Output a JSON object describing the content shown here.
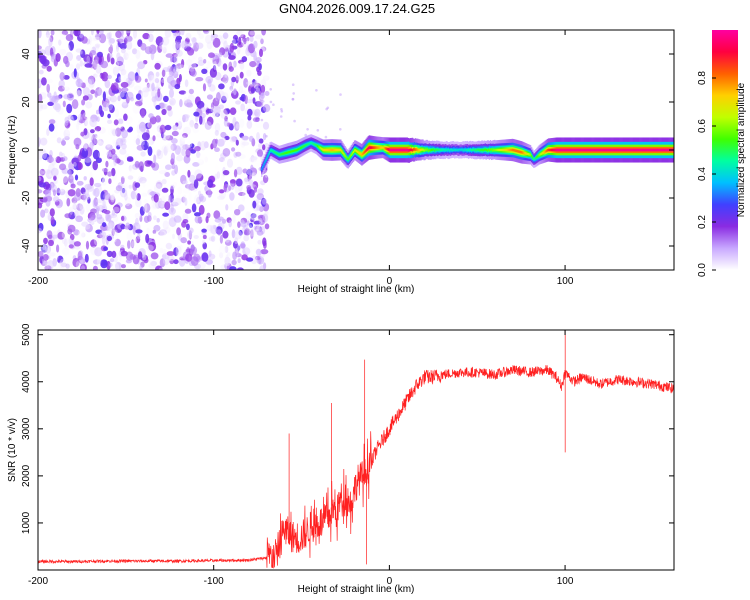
{
  "title": "GN04.2026.009.17.24.G25",
  "chart_data": [
    {
      "type": "heatmap",
      "xlabel": "Height of straight line (km)",
      "ylabel": "Frequency (Hz)",
      "xlim": [
        -200,
        162
      ],
      "ylim": [
        -50,
        50
      ],
      "x_ticks": [
        -200,
        -100,
        0,
        100
      ],
      "y_ticks": [
        -40,
        -20,
        0,
        20,
        40
      ],
      "noise_region_x": [
        -200,
        -73
      ],
      "ridge": {
        "x": [
          -73,
          -68,
          -63,
          -58,
          -53,
          -48,
          -45,
          -42,
          -38,
          -33,
          -28,
          -24,
          -20,
          -16,
          -12,
          -8,
          -4,
          0,
          10,
          20,
          30,
          40,
          50,
          60,
          70,
          75,
          80,
          82,
          85,
          90,
          95,
          100,
          110,
          120,
          130,
          140,
          150,
          162
        ],
        "freq": [
          -8,
          0,
          -2,
          -1,
          0,
          2,
          3,
          2,
          0,
          0,
          0,
          -4,
          0,
          -2,
          1,
          1,
          1,
          0,
          0,
          0,
          0,
          0,
          0,
          0,
          0,
          -1,
          -2,
          -4,
          -2,
          0,
          0,
          0,
          0,
          0,
          0,
          0,
          0,
          0
        ],
        "amplitude": [
          0.35,
          0.45,
          0.5,
          0.55,
          0.55,
          0.5,
          0.45,
          0.5,
          0.7,
          0.75,
          0.7,
          0.55,
          0.65,
          0.75,
          0.95,
          0.8,
          0.7,
          0.98,
          0.98,
          0.6,
          0.45,
          0.4,
          0.5,
          0.6,
          0.8,
          0.8,
          0.6,
          0.45,
          0.6,
          0.85,
          0.98,
          0.98,
          0.98,
          0.98,
          0.98,
          0.98,
          0.98,
          0.98
        ]
      },
      "colorbar": {
        "label": "Normalized spectral amplitude",
        "range": [
          0,
          1
        ],
        "ticks": [
          0.0,
          0.2,
          0.4,
          0.6,
          0.8
        ],
        "tick_labels": [
          "0.0",
          "0.2",
          "0.4",
          "0.6",
          "0.8"
        ],
        "colors": [
          "#ffffff",
          "#c8a8ff",
          "#8a2be2",
          "#4040ff",
          "#00c0ff",
          "#00ffa0",
          "#40ff00",
          "#c0ff00",
          "#ffd000",
          "#ff6000",
          "#ff0040",
          "#ff00a0"
        ]
      }
    },
    {
      "type": "line",
      "xlabel": "Height of straight line (km)",
      "ylabel": "SNR (10 * v/v)",
      "xlim": [
        -200,
        162
      ],
      "ylim": [
        0,
        5100
      ],
      "x_ticks": [
        -200,
        -100,
        0,
        100
      ],
      "y_ticks": [
        1000,
        2000,
        3000,
        4000,
        5000
      ],
      "color": "#ff0000",
      "x": [
        -200,
        -180,
        -160,
        -140,
        -120,
        -100,
        -80,
        -70,
        -65,
        -62,
        -60,
        -58,
        -55,
        -50,
        -45,
        -40,
        -35,
        -32,
        -30,
        -28,
        -25,
        -22,
        -20,
        -18,
        -15,
        -13,
        -10,
        -8,
        -5,
        0,
        5,
        10,
        15,
        20,
        25,
        30,
        40,
        50,
        60,
        70,
        80,
        90,
        95,
        98,
        100,
        105,
        110,
        120,
        130,
        140,
        150,
        162
      ],
      "y": [
        180,
        180,
        190,
        190,
        190,
        200,
        210,
        260,
        300,
        600,
        900,
        800,
        700,
        700,
        900,
        1000,
        1100,
        1300,
        1200,
        1500,
        1600,
        1400,
        1700,
        1900,
        2000,
        2100,
        2300,
        2500,
        2700,
        3000,
        3300,
        3600,
        3900,
        4100,
        4100,
        4150,
        4200,
        4200,
        4150,
        4250,
        4200,
        4250,
        4100,
        3900,
        4200,
        4000,
        4100,
        3950,
        4050,
        4000,
        3950,
        3850
      ],
      "spikes": [
        {
          "x": -57,
          "y": 2900
        },
        {
          "x": -33,
          "y": 3550
        },
        {
          "x": -14,
          "y": 4470
        },
        {
          "x": -13,
          "y": 120
        },
        {
          "x": 100,
          "y": 5100
        },
        {
          "x": 100,
          "y": 2500
        }
      ],
      "noise_amplitude": [
        {
          "x_from": -200,
          "x_to": -70,
          "amp": 60
        },
        {
          "x_from": -70,
          "x_to": -10,
          "amp": 700
        },
        {
          "x_from": -10,
          "x_to": 30,
          "amp": 320
        },
        {
          "x_from": 30,
          "x_to": 162,
          "amp": 220
        }
      ]
    }
  ]
}
